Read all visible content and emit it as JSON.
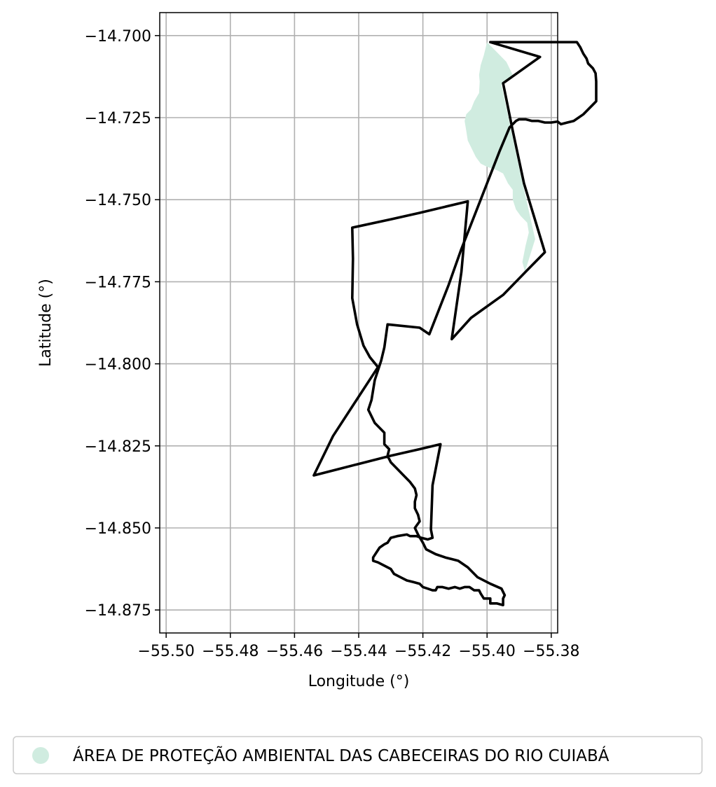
{
  "chart_data": {
    "type": "map",
    "xlabel": "Longitude (°)",
    "ylabel": "Latitude (°)",
    "xlim": [
      -55.502,
      -55.378
    ],
    "ylim": [
      -14.882,
      -14.693
    ],
    "grid": true,
    "x_ticks": [
      -55.5,
      -55.48,
      -55.46,
      -55.44,
      -55.42,
      -55.4,
      -55.38
    ],
    "x_tick_labels": [
      "−55.50",
      "−55.48",
      "−55.46",
      "−55.44",
      "−55.42",
      "−55.40",
      "−55.38"
    ],
    "y_ticks": [
      -14.7,
      -14.725,
      -14.75,
      -14.775,
      -14.8,
      -14.825,
      -14.85,
      -14.875
    ],
    "y_tick_labels": [
      "−14.700",
      "−14.725",
      "−14.750",
      "−14.775",
      "−14.800",
      "−14.825",
      "−14.850",
      "−14.875"
    ],
    "legend": {
      "placement": "bottom-center",
      "entries": [
        {
          "label": "ÁREA DE PROTEÇÃO AMBIENTAL DAS CABECEIRAS DO RIO CUIABÁ",
          "color": "#d0ece0"
        }
      ]
    },
    "boundary_color": "#000000",
    "protected_area": [
      [
        -55.4,
        -14.702
      ],
      [
        -55.397,
        -14.705
      ],
      [
        -55.394,
        -14.708
      ],
      [
        -55.392,
        -14.712
      ],
      [
        -55.3955,
        -14.715
      ],
      [
        -55.3905,
        -14.738
      ],
      [
        -55.385,
        -14.762
      ],
      [
        -55.3882,
        -14.772
      ],
      [
        -55.389,
        -14.769
      ],
      [
        -55.388,
        -14.764
      ],
      [
        -55.387,
        -14.76
      ],
      [
        -55.3875,
        -14.757
      ],
      [
        -55.3895,
        -14.755
      ],
      [
        -55.391,
        -14.753
      ],
      [
        -55.392,
        -14.75
      ],
      [
        -55.392,
        -14.747
      ],
      [
        -55.3935,
        -14.745
      ],
      [
        -55.395,
        -14.742
      ],
      [
        -55.397,
        -14.741
      ],
      [
        -55.4,
        -14.74
      ],
      [
        -55.402,
        -14.739
      ],
      [
        -55.4035,
        -14.737
      ],
      [
        -55.4045,
        -14.735
      ],
      [
        -55.406,
        -14.732
      ],
      [
        -55.4065,
        -14.729
      ],
      [
        -55.407,
        -14.726
      ],
      [
        -55.4065,
        -14.724
      ],
      [
        -55.405,
        -14.7225
      ],
      [
        -55.404,
        -14.72
      ],
      [
        -55.4025,
        -14.7175
      ],
      [
        -55.4023,
        -14.714
      ],
      [
        -55.4025,
        -14.712
      ],
      [
        -55.402,
        -14.709
      ],
      [
        -55.401,
        -14.706
      ]
    ],
    "boundary": [
      [
        -55.399,
        -14.702
      ],
      [
        -55.3835,
        -14.7065
      ],
      [
        -55.395,
        -14.7145
      ],
      [
        -55.392,
        -14.729
      ],
      [
        -55.3885,
        -14.745
      ],
      [
        -55.382,
        -14.766
      ],
      [
        -55.388,
        -14.772
      ],
      [
        -55.395,
        -14.779
      ],
      [
        -55.405,
        -14.786
      ],
      [
        -55.411,
        -14.7925
      ],
      [
        -55.408,
        -14.772
      ],
      [
        -55.406,
        -14.7505
      ],
      [
        -55.421,
        -14.754
      ],
      [
        -55.43,
        -14.756
      ],
      [
        -55.442,
        -14.7585
      ],
      [
        -55.4418,
        -14.768
      ],
      [
        -55.442,
        -14.78
      ],
      [
        -55.4405,
        -14.788
      ],
      [
        -55.4385,
        -14.7945
      ],
      [
        -55.4365,
        -14.798
      ],
      [
        -55.434,
        -14.801
      ],
      [
        -55.44,
        -14.81
      ],
      [
        -55.448,
        -14.822
      ],
      [
        -55.454,
        -14.834
      ],
      [
        -55.446,
        -14.832
      ],
      [
        -55.438,
        -14.83
      ],
      [
        -55.43,
        -14.828
      ],
      [
        -55.421,
        -14.826
      ],
      [
        -55.4145,
        -14.8245
      ],
      [
        -55.417,
        -14.837
      ],
      [
        -55.4175,
        -14.8505
      ],
      [
        -55.417,
        -14.853
      ],
      [
        -55.4185,
        -14.8535
      ],
      [
        -55.4205,
        -14.853
      ],
      [
        -55.422,
        -14.8525
      ],
      [
        -55.424,
        -14.8525
      ],
      [
        -55.425,
        -14.852
      ],
      [
        -55.428,
        -14.8525
      ],
      [
        -55.43,
        -14.853
      ],
      [
        -55.431,
        -14.8545
      ],
      [
        -55.432,
        -14.855
      ],
      [
        -55.4335,
        -14.856
      ],
      [
        -55.4345,
        -14.8575
      ],
      [
        -55.4355,
        -14.859
      ],
      [
        -55.4355,
        -14.86
      ],
      [
        -55.434,
        -14.8605
      ],
      [
        -55.432,
        -14.8615
      ],
      [
        -55.43,
        -14.8625
      ],
      [
        -55.429,
        -14.864
      ],
      [
        -55.427,
        -14.865
      ],
      [
        -55.425,
        -14.866
      ],
      [
        -55.423,
        -14.8665
      ],
      [
        -55.421,
        -14.867
      ],
      [
        -55.42,
        -14.868
      ],
      [
        -55.4185,
        -14.8685
      ],
      [
        -55.417,
        -14.869
      ],
      [
        -55.416,
        -14.869
      ],
      [
        -55.4155,
        -14.868
      ],
      [
        -55.414,
        -14.868
      ],
      [
        -55.412,
        -14.8685
      ],
      [
        -55.41,
        -14.868
      ],
      [
        -55.4085,
        -14.8685
      ],
      [
        -55.407,
        -14.868
      ],
      [
        -55.4055,
        -14.868
      ],
      [
        -55.404,
        -14.869
      ],
      [
        -55.4025,
        -14.869
      ],
      [
        -55.402,
        -14.87
      ],
      [
        -55.401,
        -14.8715
      ],
      [
        -55.399,
        -14.8715
      ],
      [
        -55.399,
        -14.873
      ],
      [
        -55.397,
        -14.873
      ],
      [
        -55.395,
        -14.8735
      ],
      [
        -55.395,
        -14.8715
      ],
      [
        -55.3945,
        -14.8705
      ],
      [
        -55.3955,
        -14.8685
      ],
      [
        -55.399,
        -14.867
      ],
      [
        -55.403,
        -14.865
      ],
      [
        -55.406,
        -14.862
      ],
      [
        -55.409,
        -14.86
      ],
      [
        -55.411,
        -14.8595
      ],
      [
        -55.413,
        -14.859
      ],
      [
        -55.416,
        -14.858
      ],
      [
        -55.419,
        -14.8565
      ],
      [
        -55.42,
        -14.8545
      ],
      [
        -55.4215,
        -14.852
      ],
      [
        -55.4225,
        -14.85
      ],
      [
        -55.421,
        -14.848
      ],
      [
        -55.4215,
        -14.846
      ],
      [
        -55.4225,
        -14.844
      ],
      [
        -55.4225,
        -14.842
      ],
      [
        -55.422,
        -14.84
      ],
      [
        -55.4225,
        -14.838
      ],
      [
        -55.424,
        -14.836
      ],
      [
        -55.426,
        -14.834
      ],
      [
        -55.428,
        -14.832
      ],
      [
        -55.43,
        -14.83
      ],
      [
        -55.431,
        -14.828
      ],
      [
        -55.4305,
        -14.826
      ],
      [
        -55.432,
        -14.8245
      ],
      [
        -55.432,
        -14.823
      ],
      [
        -55.432,
        -14.821
      ],
      [
        -55.433,
        -14.82
      ],
      [
        -55.435,
        -14.818
      ],
      [
        -55.436,
        -14.816
      ],
      [
        -55.437,
        -14.814
      ],
      [
        -55.436,
        -14.811
      ],
      [
        -55.4355,
        -14.808
      ],
      [
        -55.435,
        -14.805
      ],
      [
        -55.434,
        -14.802
      ],
      [
        -55.433,
        -14.799
      ],
      [
        -55.432,
        -14.795
      ],
      [
        -55.431,
        -14.788
      ],
      [
        -55.421,
        -14.789
      ],
      [
        -55.418,
        -14.791
      ],
      [
        -55.412,
        -14.776
      ],
      [
        -55.408,
        -14.765
      ],
      [
        -55.402,
        -14.75
      ],
      [
        -55.396,
        -14.735
      ],
      [
        -55.393,
        -14.728
      ],
      [
        -55.392,
        -14.727
      ],
      [
        -55.391,
        -14.726
      ],
      [
        -55.39,
        -14.7255
      ],
      [
        -55.388,
        -14.7255
      ],
      [
        -55.386,
        -14.726
      ],
      [
        -55.384,
        -14.726
      ],
      [
        -55.382,
        -14.7265
      ],
      [
        -55.38,
        -14.7265
      ],
      [
        -55.378,
        -14.7262
      ],
      [
        -55.377,
        -14.727
      ],
      [
        -55.375,
        -14.7265
      ],
      [
        -55.373,
        -14.726
      ],
      [
        -55.3715,
        -14.725
      ],
      [
        -55.37,
        -14.724
      ],
      [
        -55.3685,
        -14.7225
      ],
      [
        -55.367,
        -14.721
      ],
      [
        -55.366,
        -14.72
      ],
      [
        -55.366,
        -14.7185
      ],
      [
        -55.366,
        -14.7165
      ],
      [
        -55.366,
        -14.714
      ],
      [
        -55.3662,
        -14.7115
      ],
      [
        -55.367,
        -14.71
      ],
      [
        -55.3685,
        -14.7085
      ],
      [
        -55.369,
        -14.707
      ],
      [
        -55.37,
        -14.7055
      ],
      [
        -55.371,
        -14.7035
      ],
      [
        -55.372,
        -14.702
      ]
    ]
  }
}
